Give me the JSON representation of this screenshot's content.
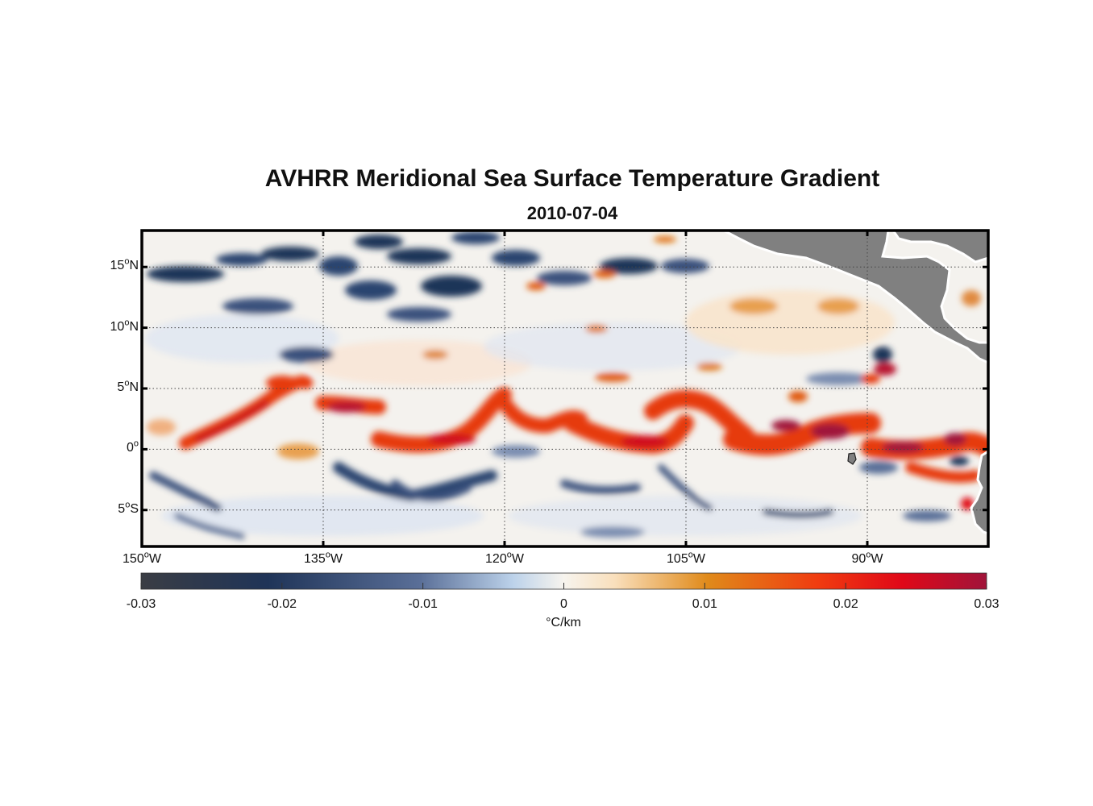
{
  "figure": {
    "title": "AVHRR Meridional Sea Surface Temperature Gradient",
    "subtitle": "2010-07-04"
  },
  "map": {
    "lon_range": [
      150,
      80
    ],
    "lat_range": [
      -8,
      18
    ],
    "lat_ticks": [
      {
        "value": 15,
        "num": "15",
        "hemi": "N"
      },
      {
        "value": 10,
        "num": "10",
        "hemi": "N"
      },
      {
        "value": 5,
        "num": "5",
        "hemi": "N"
      },
      {
        "value": 0,
        "num": "0",
        "hemi": ""
      },
      {
        "value": -5,
        "num": "5",
        "hemi": "S"
      }
    ],
    "lon_ticks": [
      {
        "value": 150,
        "num": "150",
        "hemi": "W"
      },
      {
        "value": 135,
        "num": "135",
        "hemi": "W"
      },
      {
        "value": 120,
        "num": "120",
        "hemi": "W"
      },
      {
        "value": 105,
        "num": "105",
        "hemi": "W"
      },
      {
        "value": 90,
        "num": "90",
        "hemi": "W"
      }
    ],
    "degree_symbol": "o",
    "land_color": "#808080",
    "grid": "dotted"
  },
  "colorbar": {
    "ticks": [
      "-0.03",
      "-0.02",
      "-0.01",
      "0",
      "0.01",
      "0.02",
      "0.03"
    ],
    "range": [
      -0.03,
      0.03
    ],
    "unit": "°C/km",
    "colors": [
      "#3a3d44",
      "#1f3458",
      "#5a6f98",
      "#bcd2ea",
      "#f7f4ee",
      "#f9dfbc",
      "#e08a1a",
      "#f03c10",
      "#e00818",
      "#a0143a"
    ]
  }
}
